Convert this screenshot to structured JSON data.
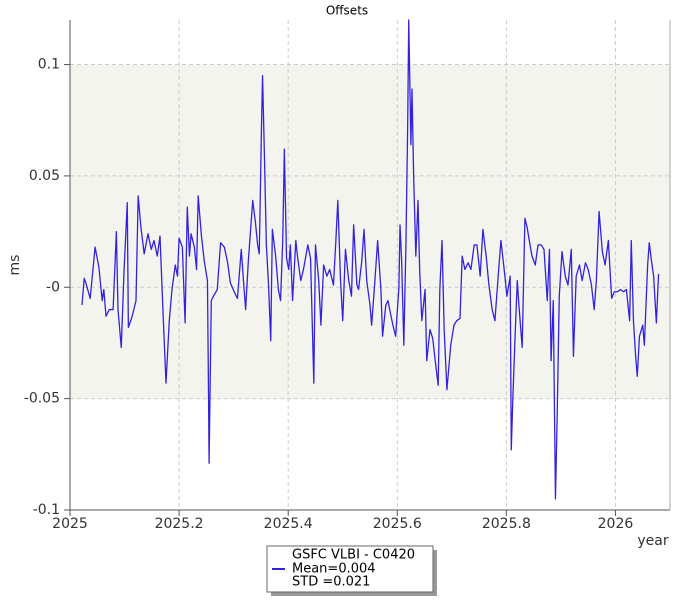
{
  "chart_data": {
    "type": "line",
    "title": "Offsets",
    "x_label": "year",
    "y_label": "ms",
    "xlim": [
      2025,
      2026.1
    ],
    "ylim": [
      -0.1,
      0.12
    ],
    "xticks": [
      2025,
      2025.2,
      2025.4,
      2025.6,
      2025.8,
      2026
    ],
    "yticks": [
      -0.1,
      -0.05,
      {
        "value": 0,
        "label": "-0"
      },
      0.05,
      0.1
    ],
    "grid": true,
    "shaded_band": [
      -0.05,
      0.1
    ],
    "legend_stats": [
      "Mean=0.004",
      "STD =0.021"
    ],
    "x": [
      2025.022,
      2025.026,
      2025.029,
      2025.037,
      2025.046,
      2025.053,
      2025.059,
      2025.062,
      2025.066,
      2025.072,
      2025.079,
      2025.085,
      2025.088,
      2025.094,
      2025.099,
      2025.105,
      2025.107,
      2025.114,
      2025.121,
      2025.125,
      2025.13,
      2025.136,
      2025.143,
      2025.149,
      2025.154,
      2025.16,
      2025.165,
      2025.171,
      2025.176,
      2025.182,
      2025.187,
      2025.193,
      2025.197,
      2025.2,
      2025.206,
      2025.211,
      2025.215,
      2025.219,
      2025.222,
      2025.228,
      2025.232,
      2025.235,
      2025.241,
      2025.246,
      2025.252,
      2025.254,
      2025.255,
      2025.259,
      2025.263,
      2025.27,
      2025.276,
      2025.283,
      2025.289,
      2025.294,
      2025.301,
      2025.307,
      2025.314,
      2025.318,
      2025.322,
      2025.327,
      2025.335,
      2025.34,
      2025.344,
      2025.347,
      2025.351,
      2025.353,
      2025.357,
      2025.36,
      2025.364,
      2025.368,
      2025.371,
      2025.377,
      2025.382,
      2025.386,
      2025.39,
      2025.393,
      2025.397,
      2025.401,
      2025.404,
      2025.408,
      2025.414,
      2025.417,
      2025.423,
      2025.428,
      2025.436,
      2025.441,
      2025.447,
      2025.45,
      2025.456,
      2025.46,
      2025.465,
      2025.471,
      2025.476,
      2025.483,
      2025.487,
      2025.491,
      2025.496,
      2025.5,
      2025.505,
      2025.511,
      2025.516,
      2025.52,
      2025.526,
      2025.529,
      2025.535,
      2025.539,
      2025.544,
      2025.55,
      2025.553,
      2025.559,
      2025.564,
      2025.57,
      2025.573,
      2025.579,
      2025.583,
      2025.586,
      2025.592,
      2025.597,
      2025.603,
      2025.605,
      2025.608,
      2025.612,
      2025.616,
      2025.619,
      2025.621,
      2025.625,
      2025.627,
      2025.63,
      2025.634,
      2025.638,
      2025.641,
      2025.645,
      2025.651,
      2025.654,
      2025.66,
      2025.665,
      2025.671,
      2025.675,
      2025.678,
      2025.682,
      2025.686,
      2025.691,
      2025.698,
      2025.704,
      2025.709,
      2025.715,
      2025.719,
      2025.724,
      2025.73,
      2025.735,
      2025.741,
      2025.746,
      2025.752,
      2025.757,
      2025.763,
      2025.768,
      2025.774,
      2025.779,
      2025.785,
      2025.79,
      2025.796,
      2025.801,
      2025.807,
      2025.809,
      2025.812,
      2025.816,
      2025.82,
      2025.823,
      2025.829,
      2025.834,
      2025.838,
      2025.842,
      2025.847,
      2025.853,
      2025.858,
      2025.864,
      2025.869,
      2025.875,
      2025.879,
      2025.882,
      2025.886,
      2025.89,
      2025.893,
      2025.897,
      2025.902,
      2025.908,
      2025.913,
      2025.919,
      2025.923,
      2025.928,
      2025.934,
      2025.939,
      2025.945,
      2025.95,
      2025.956,
      2025.961,
      2025.965,
      2025.97,
      2025.976,
      2025.981,
      2025.987,
      2025.993,
      2025.998,
      2026.004,
      2026.009,
      2026.015,
      2026.02,
      2026.026,
      2026.029,
      2026.033,
      2026.037,
      2026.04,
      2026.044,
      2026.05,
      2026.053,
      2026.059,
      2026.062,
      2026.066,
      2026.07,
      2026.075,
      2026.079
    ],
    "series": [
      {
        "name": "GSFC VLBI - C0420",
        "color": "#3322dd",
        "values": [
          -0.008,
          0.004,
          0.002,
          -0.005,
          0.018,
          0.009,
          -0.006,
          -0.001,
          -0.013,
          -0.01,
          -0.01,
          0.025,
          -0.01,
          -0.027,
          0.007,
          0.038,
          -0.018,
          -0.013,
          -0.006,
          0.041,
          0.027,
          0.015,
          0.024,
          0.017,
          0.021,
          0.014,
          0.023,
          -0.014,
          -0.043,
          -0.015,
          -0.001,
          0.01,
          0.005,
          0.022,
          0.018,
          -0.016,
          0.036,
          0.014,
          0.024,
          0.018,
          0.008,
          0.041,
          0.023,
          0.012,
          0.003,
          -0.049,
          -0.079,
          -0.006,
          -0.004,
          -0.001,
          0.02,
          0.018,
          0.011,
          0.002,
          -0.002,
          -0.005,
          0.017,
          0.003,
          -0.01,
          0.012,
          0.039,
          0.029,
          0.019,
          0.015,
          0.071,
          0.095,
          0.053,
          0.019,
          0.001,
          -0.024,
          0.026,
          0.014,
          -0.001,
          -0.006,
          0.021,
          0.062,
          0.013,
          0.008,
          0.019,
          -0.006,
          0.021,
          0.014,
          0.003,
          0.008,
          0.019,
          0.013,
          -0.043,
          0.019,
          0.003,
          -0.017,
          0.01,
          0.005,
          0.008,
          0.001,
          0.019,
          0.039,
          0.003,
          -0.015,
          0.017,
          0.003,
          -0.004,
          0.028,
          0.001,
          -0.001,
          0.012,
          0.026,
          0.003,
          -0.008,
          -0.017,
          0.003,
          0.021,
          -0.001,
          -0.022,
          -0.008,
          -0.006,
          -0.01,
          -0.017,
          -0.022,
          0.0,
          0.028,
          0.012,
          -0.026,
          0.021,
          0.071,
          0.12,
          0.064,
          0.089,
          0.05,
          0.014,
          0.039,
          0.008,
          -0.015,
          -0.001,
          -0.033,
          -0.019,
          -0.023,
          -0.036,
          -0.044,
          -0.001,
          0.021,
          -0.019,
          -0.046,
          -0.026,
          -0.017,
          -0.015,
          -0.014,
          0.014,
          0.008,
          0.011,
          0.008,
          0.019,
          0.019,
          0.005,
          0.026,
          0.014,
          0.001,
          -0.01,
          -0.015,
          0.005,
          0.021,
          0.008,
          -0.004,
          0.005,
          -0.073,
          -0.049,
          -0.022,
          0.003,
          -0.008,
          -0.027,
          0.031,
          0.027,
          0.021,
          0.014,
          0.01,
          0.019,
          0.019,
          0.017,
          -0.006,
          0.017,
          -0.033,
          -0.006,
          -0.095,
          -0.06,
          -0.004,
          0.016,
          0.005,
          0.001,
          0.017,
          -0.031,
          0.005,
          0.01,
          0.003,
          0.011,
          0.008,
          0.001,
          -0.01,
          0.003,
          0.034,
          0.016,
          0.01,
          0.021,
          -0.005,
          -0.002,
          -0.002,
          -0.001,
          -0.002,
          -0.001,
          -0.015,
          0.021,
          -0.015,
          -0.031,
          -0.04,
          -0.022,
          -0.017,
          -0.026,
          0.01,
          0.02,
          0.012,
          0.005,
          -0.016,
          0.006
        ]
      }
    ]
  }
}
